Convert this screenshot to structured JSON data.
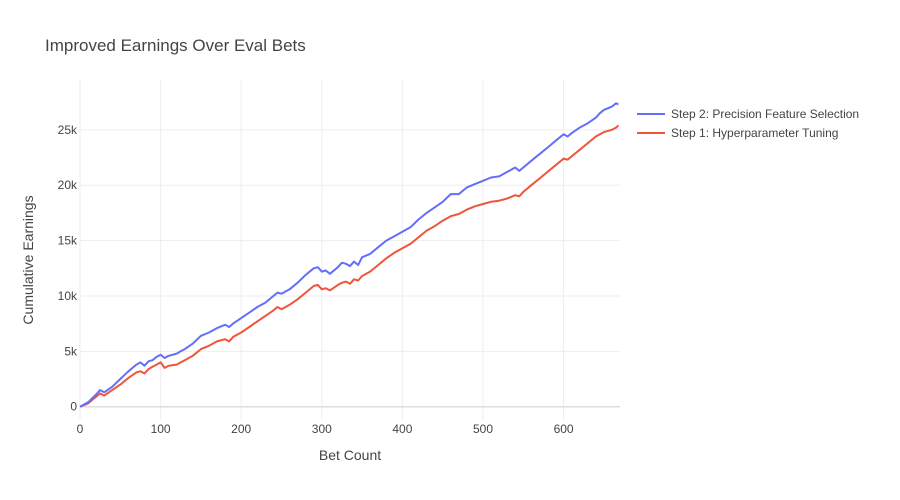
{
  "chart_data": {
    "type": "line",
    "title": "Improved Earnings Over Eval Bets",
    "xlabel": "Bet Count",
    "ylabel": "Cumulative Earnings",
    "xlim": [
      0,
      670
    ],
    "ylim": [
      -1200,
      29500
    ],
    "x_ticks": [
      0,
      100,
      200,
      300,
      400,
      500,
      600
    ],
    "x_tick_labels": [
      "0",
      "100",
      "200",
      "300",
      "400",
      "500",
      "600"
    ],
    "y_ticks": [
      0,
      5000,
      10000,
      15000,
      20000,
      25000
    ],
    "y_tick_labels": [
      "0",
      "5k",
      "10k",
      "15k",
      "20k",
      "25k"
    ],
    "grid": true,
    "legend_position": "top-right",
    "series": [
      {
        "name": "Step 2: Precision Feature Selection",
        "color": "#636efa",
        "x": [
          0,
          10,
          20,
          25,
          30,
          40,
          50,
          60,
          70,
          75,
          80,
          85,
          90,
          95,
          100,
          105,
          110,
          120,
          125,
          130,
          140,
          150,
          160,
          170,
          180,
          185,
          190,
          200,
          210,
          220,
          230,
          240,
          245,
          250,
          260,
          270,
          280,
          290,
          295,
          300,
          305,
          310,
          320,
          325,
          330,
          335,
          340,
          345,
          350,
          360,
          370,
          380,
          390,
          400,
          410,
          420,
          430,
          440,
          450,
          460,
          470,
          480,
          490,
          500,
          510,
          520,
          530,
          540,
          545,
          550,
          560,
          570,
          580,
          590,
          600,
          605,
          610,
          620,
          630,
          640,
          645,
          650,
          660,
          665,
          668
        ],
        "y": [
          0,
          400,
          1100,
          1500,
          1300,
          1800,
          2500,
          3200,
          3800,
          4000,
          3700,
          4100,
          4200,
          4500,
          4700,
          4400,
          4600,
          4800,
          5000,
          5200,
          5700,
          6400,
          6700,
          7100,
          7400,
          7200,
          7500,
          8000,
          8500,
          9000,
          9400,
          10000,
          10300,
          10200,
          10600,
          11200,
          11900,
          12500,
          12600,
          12200,
          12300,
          12000,
          12600,
          13000,
          12900,
          12700,
          13100,
          12800,
          13500,
          13800,
          14400,
          15000,
          15400,
          15800,
          16200,
          16900,
          17500,
          18000,
          18500,
          19200,
          19200,
          19800,
          20100,
          20400,
          20700,
          20800,
          21200,
          21600,
          21300,
          21600,
          22200,
          22800,
          23400,
          24000,
          24600,
          24400,
          24700,
          25200,
          25600,
          26100,
          26500,
          26800,
          27100,
          27400,
          27300
        ]
      },
      {
        "name": "Step 1: Hyperparameter Tuning",
        "color": "#ef553b",
        "x": [
          0,
          10,
          20,
          25,
          30,
          40,
          50,
          60,
          70,
          75,
          80,
          85,
          90,
          95,
          100,
          105,
          110,
          120,
          125,
          130,
          140,
          150,
          160,
          170,
          180,
          185,
          190,
          200,
          210,
          220,
          230,
          240,
          245,
          250,
          260,
          270,
          280,
          290,
          295,
          300,
          305,
          310,
          320,
          325,
          330,
          335,
          340,
          345,
          350,
          360,
          370,
          380,
          390,
          400,
          410,
          420,
          430,
          440,
          450,
          460,
          470,
          480,
          490,
          500,
          510,
          520,
          530,
          540,
          545,
          550,
          560,
          570,
          580,
          590,
          600,
          605,
          610,
          620,
          630,
          640,
          645,
          650,
          660,
          665,
          668
        ],
        "y": [
          0,
          300,
          900,
          1200,
          1000,
          1500,
          2000,
          2600,
          3100,
          3200,
          3000,
          3400,
          3600,
          3800,
          4000,
          3500,
          3700,
          3800,
          4000,
          4200,
          4600,
          5200,
          5500,
          5900,
          6100,
          5900,
          6300,
          6700,
          7200,
          7700,
          8200,
          8700,
          9000,
          8800,
          9200,
          9700,
          10300,
          10900,
          11000,
          10600,
          10700,
          10500,
          11000,
          11200,
          11300,
          11100,
          11500,
          11400,
          11800,
          12200,
          12800,
          13400,
          13900,
          14300,
          14700,
          15300,
          15900,
          16300,
          16800,
          17200,
          17400,
          17800,
          18100,
          18300,
          18500,
          18600,
          18800,
          19100,
          19000,
          19400,
          20000,
          20600,
          21200,
          21800,
          22400,
          22300,
          22600,
          23200,
          23800,
          24400,
          24600,
          24800,
          25000,
          25200,
          25400
        ]
      }
    ]
  }
}
